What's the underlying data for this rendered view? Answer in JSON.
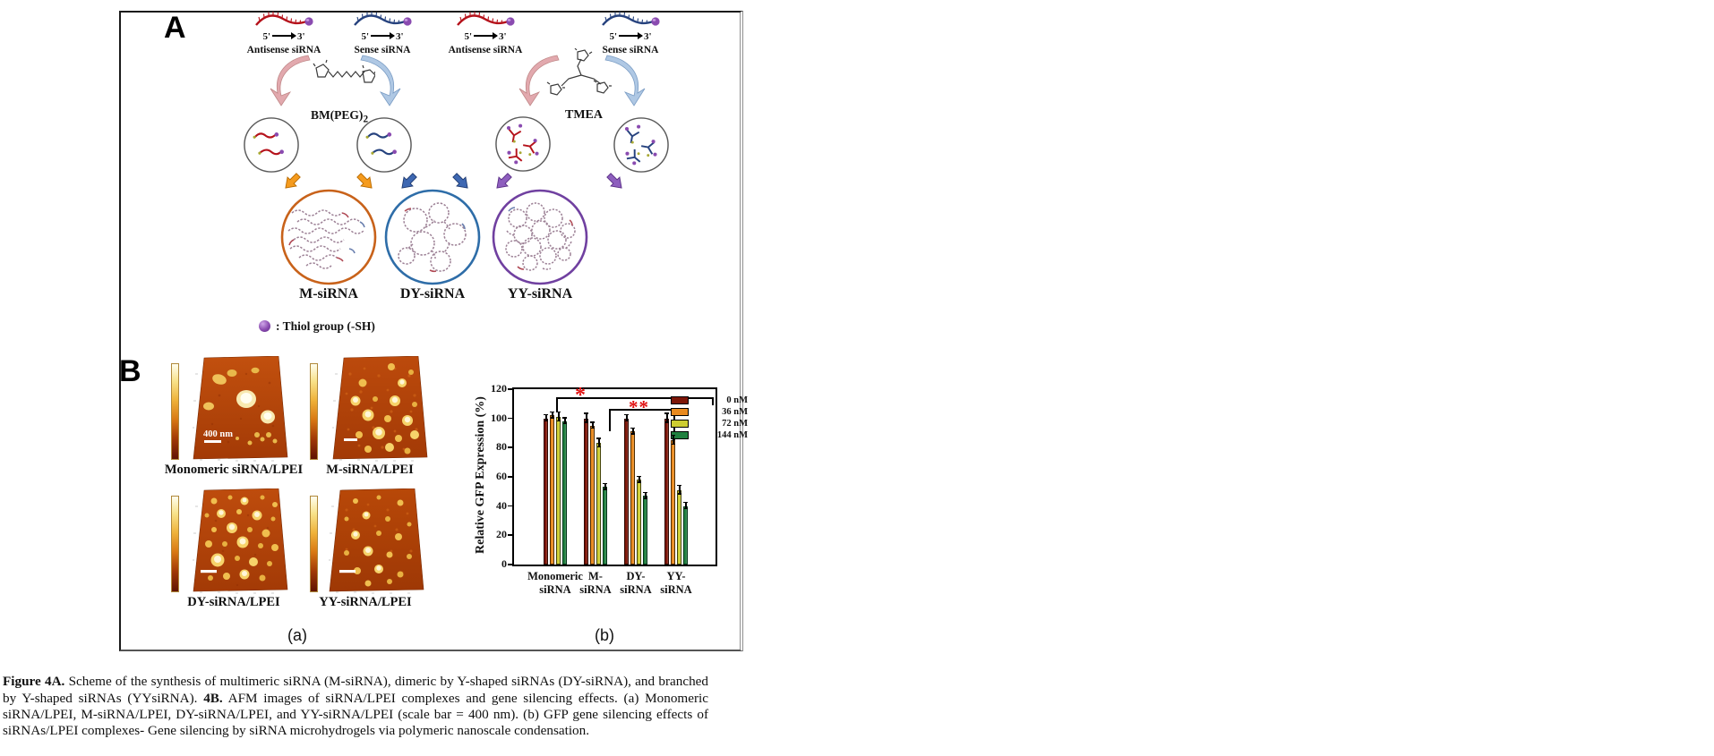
{
  "panel_a": {
    "label": "A",
    "five_label": "5'",
    "three_label": "3'",
    "strands": [
      {
        "name": "Antisense siRNA",
        "color": "#B5121B"
      },
      {
        "name": "Sense siRNA",
        "color": "#26427E"
      },
      {
        "name": "Antisense siRNA",
        "color": "#B5121B"
      },
      {
        "name": "Sense siRNA",
        "color": "#26427E"
      }
    ],
    "linker1_base": "BM(PEG)",
    "linker1_sub": "2",
    "linker2": "TMEA",
    "products": [
      {
        "label": "M-siRNA",
        "ring_color": "#C8621A"
      },
      {
        "label": "DY-siRNA",
        "ring_color": "#2E6DA8"
      },
      {
        "label": "YY-siRNA",
        "ring_color": "#7040A0"
      }
    ],
    "thiol_legend": ":  Thiol group (-SH)",
    "thiol_marker_color": "#8a4bb0"
  },
  "panel_b": {
    "label": "B",
    "afm_labels": [
      "Monomeric siRNA/LPEI",
      "M-siRNA/LPEI",
      "DY-siRNA/LPEI",
      "YY-siRNA/LPEI"
    ],
    "scale_bar_text": "400 nm",
    "sub_label_a": "(a)",
    "sub_label_b": "(b)"
  },
  "chart_data": {
    "type": "bar",
    "title": "",
    "xlabel": "",
    "ylabel": "Relative GFP Expression (%)",
    "ylim": [
      0,
      120
    ],
    "yticks": [
      0,
      20,
      40,
      60,
      80,
      100,
      120
    ],
    "grid": false,
    "legend_position": "upper right",
    "categories": [
      "Monomeric siRNA",
      "M-siRNA",
      "DY-siRNA",
      "YY-siRNA"
    ],
    "category_lines": [
      [
        "Monomeric",
        "siRNA"
      ],
      [
        "M-",
        "siRNA"
      ],
      [
        "DY-",
        "siRNA"
      ],
      [
        "YY-",
        "siRNA"
      ]
    ],
    "series": [
      {
        "name": "0 nM",
        "color": "#7D1608",
        "border": "#2e0a02",
        "values": [
          100,
          100,
          100,
          100
        ],
        "errors": [
          2,
          3,
          2,
          3
        ]
      },
      {
        "name": "36 nM",
        "color": "#E98A1F",
        "border": "#4f2c00",
        "values": [
          102,
          95,
          91,
          85
        ],
        "errors": [
          2,
          2,
          2,
          3
        ]
      },
      {
        "name": "72 nM",
        "color": "#CDCD32",
        "border": "#45450a",
        "values": [
          101,
          83,
          58,
          51
        ],
        "errors": [
          3,
          3,
          2,
          3
        ]
      },
      {
        "name": "144 nM",
        "color": "#20803F",
        "border": "#003418",
        "values": [
          98,
          53,
          47,
          40
        ],
        "errors": [
          2,
          2,
          2,
          2
        ]
      }
    ],
    "significance": [
      {
        "label": "*"
      },
      {
        "label": "**"
      }
    ],
    "significance_color": "#E01010"
  },
  "caption": {
    "segments": [
      {
        "text": "Figure 4A.",
        "bold": true
      },
      {
        "text": " Scheme of the synthesis of multimeric siRNA (M-siRNA), dimeric by Y-shaped siRNAs (DY-siRNA), and branched by Y-shaped siRNAs (YYsiRNA). ",
        "bold": false
      },
      {
        "text": "4B.",
        "bold": true
      },
      {
        "text": " AFM images of siRNA/LPEI complexes and gene silencing effects. (a) Monomeric siRNA/LPEI, M-siRNA/LPEI, DY-siRNA/LPEI, and YY-siRNA/LPEI (scale bar = 400 nm). (b) GFP gene silencing effects of siRNAs/LPEI complexes- Gene silencing by siRNA microhydrogels via polymeric nanoscale condensation.",
        "bold": false
      }
    ]
  }
}
